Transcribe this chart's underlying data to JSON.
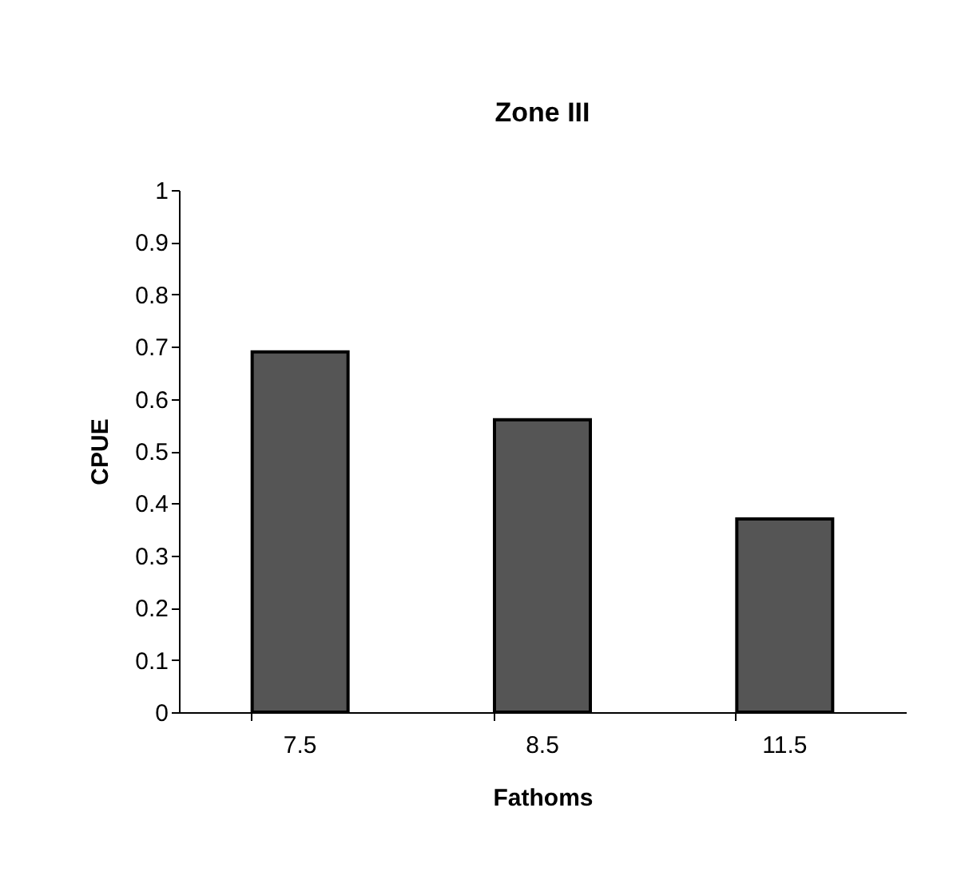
{
  "chart_data": {
    "type": "bar",
    "title": "Zone III",
    "xlabel": "Fathoms",
    "ylabel": "CPUE",
    "categories": [
      "7.5",
      "8.5",
      "11.5"
    ],
    "values": [
      0.69,
      0.56,
      0.37
    ],
    "color": "#555555",
    "ylim": [
      0,
      1
    ],
    "yticks": [
      0,
      0.1,
      0.2,
      0.3,
      0.4,
      0.5,
      0.6,
      0.7,
      0.8,
      0.9,
      1
    ],
    "grid": false
  }
}
